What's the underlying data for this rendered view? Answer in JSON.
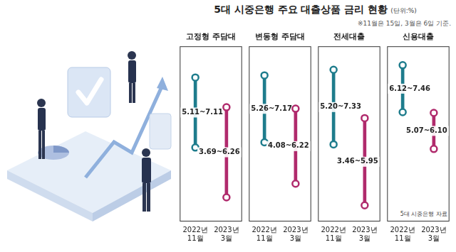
{
  "title": "5대 시중은행 주요 대출상품 금리 현황",
  "unit": "(단위:%)",
  "note": "※11월은 15일, 3월은 6일 기준.",
  "source": "5대 시중은행 자료",
  "chart_data": [
    {
      "type": "bar",
      "title": "고정형 주담대",
      "categories": [
        "2022년 11월",
        "2023년 3월"
      ],
      "values": [
        [
          5.11,
          7.11
        ],
        [
          3.69,
          6.26
        ]
      ],
      "value_labels": [
        "5.11~7.11",
        "3.69~6.26"
      ],
      "colors": [
        "#1e7c8c",
        "#b02a6c"
      ],
      "ylim": [
        3,
        8
      ],
      "tick_labels": "x",
      "data_labels": true,
      "grid": false
    },
    {
      "type": "bar",
      "title": "변동형 주담대",
      "categories": [
        "2022년 11월",
        "2023년 3월"
      ],
      "values": [
        [
          5.26,
          7.17
        ],
        [
          4.08,
          6.22
        ]
      ],
      "value_labels": [
        "5.26~7.17",
        "4.08~6.22"
      ],
      "colors": [
        "#1e7c8c",
        "#b02a6c"
      ],
      "ylim": [
        3,
        8
      ],
      "tick_labels": "x",
      "data_labels": true,
      "grid": false
    },
    {
      "type": "bar",
      "title": "전세대출",
      "categories": [
        "2022년 11월",
        "2023년 3월"
      ],
      "values": [
        [
          5.2,
          7.33
        ],
        [
          3.46,
          5.95
        ]
      ],
      "value_labels": [
        "5.20~7.33",
        "3.46~5.95"
      ],
      "colors": [
        "#1e7c8c",
        "#b02a6c"
      ],
      "ylim": [
        3,
        8
      ],
      "tick_labels": "x",
      "data_labels": true,
      "grid": false
    },
    {
      "type": "bar",
      "title": "신용대출",
      "categories": [
        "2022년 11월",
        "2023년 3월"
      ],
      "values": [
        [
          6.12,
          7.46
        ],
        [
          5.07,
          6.1
        ]
      ],
      "value_labels": [
        "6.12~7.46",
        "5.07~6.10"
      ],
      "colors": [
        "#1e7c8c",
        "#b02a6c"
      ],
      "ylim": [
        3,
        8
      ],
      "tick_labels": "x",
      "data_labels": true,
      "grid": false
    }
  ]
}
